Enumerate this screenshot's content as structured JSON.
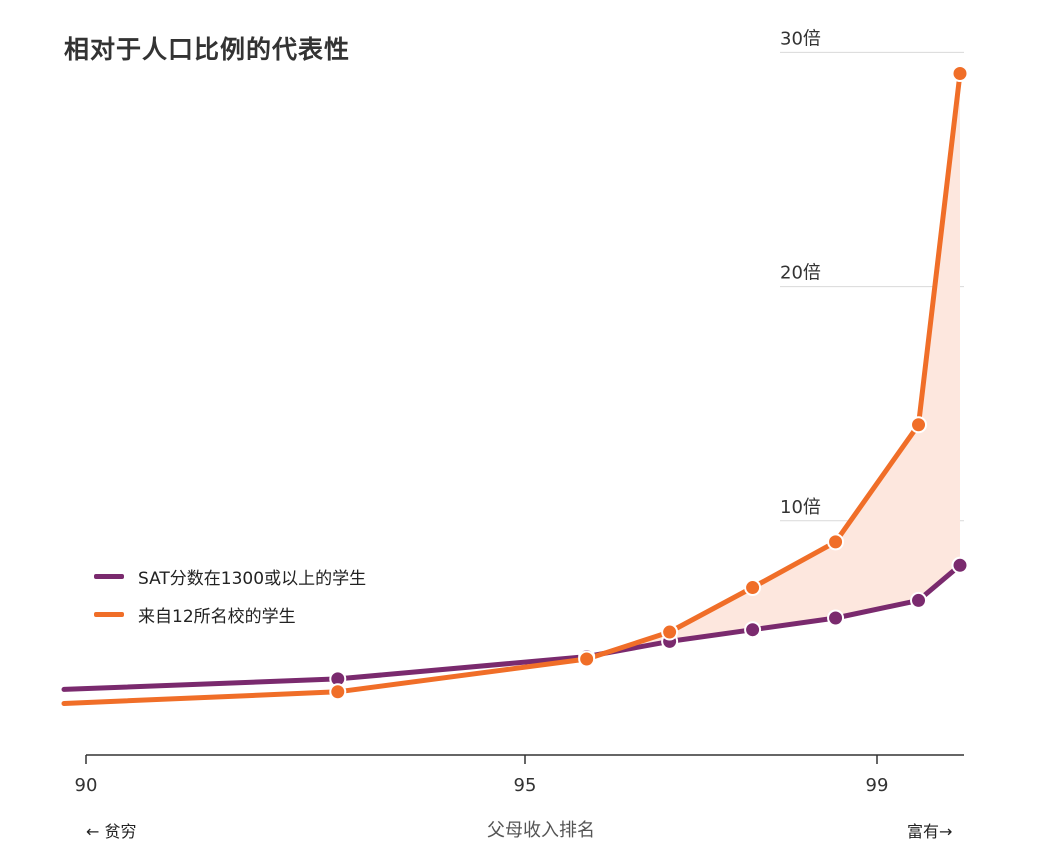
{
  "chart_data": {
    "type": "line",
    "title": "相对于人口比例的代表性",
    "xlabel": "父母收入排名",
    "x_ticks": [
      90,
      95,
      99
    ],
    "xlim": [
      89.2,
      100
    ],
    "x_left_note": "← 贫穷",
    "x_right_note": "富有→",
    "y_ticks": [
      10,
      20,
      30
    ],
    "y_tick_labels": [
      "10倍",
      "20倍",
      "30倍"
    ],
    "ylim": [
      0,
      30.7
    ],
    "grid": true,
    "legend_position": "middle-left",
    "shaded_region_between_series": true,
    "series": [
      {
        "name": "SAT分数在1300或以上的学生",
        "color": "#7a2a6e",
        "x": [
          89.2,
          92.5,
          95.5,
          96.5,
          97.5,
          98.5,
          99.5,
          100
        ],
        "y": [
          2.8,
          3.25,
          4.2,
          4.85,
          5.35,
          5.85,
          6.6,
          8.1
        ],
        "markers": [
          false,
          true,
          true,
          true,
          true,
          true,
          true,
          true
        ]
      },
      {
        "name": "来自12所名校的学生",
        "color": "#f06e28",
        "x": [
          89.2,
          92.5,
          95.5,
          96.5,
          97.5,
          98.5,
          99.5,
          100
        ],
        "y": [
          2.2,
          2.7,
          4.1,
          5.25,
          7.15,
          9.1,
          14.1,
          29.1
        ],
        "markers": [
          false,
          true,
          true,
          true,
          true,
          true,
          true,
          true
        ]
      }
    ],
    "colors": {
      "fill": "#fde7de",
      "grid": "#d9d9d9",
      "axis": "#333333"
    }
  }
}
